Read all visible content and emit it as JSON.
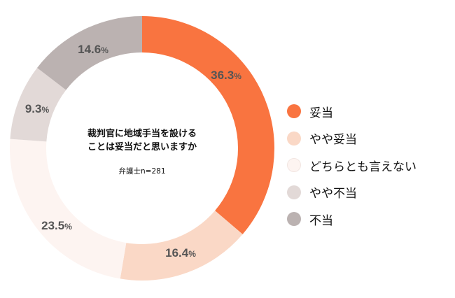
{
  "chart_data": {
    "type": "pie",
    "subtype": "donut",
    "title": "裁判官に地域手当を設けることは妥当だと思いますか",
    "subtitle": "弁護士n=281",
    "categories": [
      "妥当",
      "やや妥当",
      "どちらとも言えない",
      "やや不当",
      "不当"
    ],
    "values": [
      36.3,
      16.4,
      23.5,
      9.3,
      14.6
    ],
    "unit": "%",
    "colors": [
      "#f97440",
      "#fad8c6",
      "#fdf4f1",
      "#e2d9d7",
      "#bbb2b1"
    ],
    "legend_position": "right",
    "start_angle": "12 o'clock, clockwise"
  },
  "center": {
    "title_line1": "裁判官に地域手当を設ける",
    "title_line2": "ことは妥当だと思いますか",
    "sample": "弁護士n=281"
  },
  "labels": [
    {
      "num": "36.3",
      "pct": "%"
    },
    {
      "num": "16.4",
      "pct": "%"
    },
    {
      "num": "23.5",
      "pct": "%"
    },
    {
      "num": "9.3",
      "pct": "%"
    },
    {
      "num": "14.6",
      "pct": "%"
    }
  ],
  "legend": [
    {
      "label": "妥当"
    },
    {
      "label": "やや妥当"
    },
    {
      "label": "どちらとも言えない"
    },
    {
      "label": "やや不当"
    },
    {
      "label": "不当"
    }
  ]
}
